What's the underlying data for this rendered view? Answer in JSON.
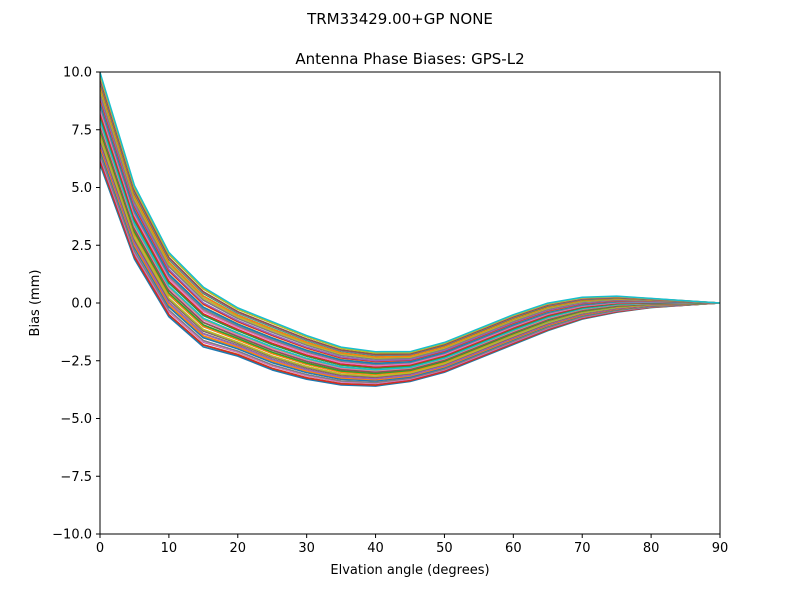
{
  "figure": {
    "suptitle": "TRM33429.00+GP  NONE"
  },
  "chart_data": {
    "type": "line",
    "title": "Antenna Phase Biases: GPS-L2",
    "xlabel": "Elvation angle (degrees)",
    "ylabel": "Bias (mm)",
    "xlim": [
      0,
      90
    ],
    "ylim": [
      -10,
      10
    ],
    "xticks": [
      0,
      10,
      20,
      30,
      40,
      50,
      60,
      70,
      80,
      90
    ],
    "yticks": [
      -10.0,
      -7.5,
      -5.0,
      -2.5,
      0.0,
      2.5,
      5.0,
      7.5,
      10.0
    ],
    "xtick_labels": [
      "0",
      "10",
      "20",
      "30",
      "40",
      "50",
      "60",
      "70",
      "80",
      "90"
    ],
    "ytick_labels": [
      "−10.0",
      "−7.5",
      "−5.0",
      "−2.5",
      "0.0",
      "2.5",
      "5.0",
      "7.5",
      "10.0"
    ],
    "grid": false,
    "legend": "none",
    "x": [
      0,
      5,
      10,
      15,
      20,
      25,
      30,
      35,
      40,
      45,
      50,
      55,
      60,
      65,
      70,
      75,
      80,
      85,
      90
    ],
    "envelope_upper": {
      "name": "upper envelope",
      "values": [
        10.0,
        5.1,
        2.2,
        0.7,
        -0.2,
        -0.8,
        -1.4,
        -1.9,
        -2.1,
        -2.1,
        -1.7,
        -1.1,
        -0.5,
        0.0,
        0.25,
        0.3,
        0.2,
        0.1,
        0.0
      ]
    },
    "envelope_lower": {
      "name": "lower envelope",
      "values": [
        6.0,
        1.9,
        -0.6,
        -1.9,
        -2.3,
        -2.9,
        -3.3,
        -3.55,
        -3.6,
        -3.4,
        -3.0,
        -2.4,
        -1.8,
        -1.2,
        -0.7,
        -0.4,
        -0.2,
        -0.1,
        0.0
      ]
    },
    "series_count": 60,
    "palette": [
      "#1f77b4",
      "#ff7f0e",
      "#2ca02c",
      "#d62728",
      "#9467bd",
      "#8c564b",
      "#e377c2",
      "#7f7f7f",
      "#bcbd22",
      "#17becf"
    ]
  }
}
